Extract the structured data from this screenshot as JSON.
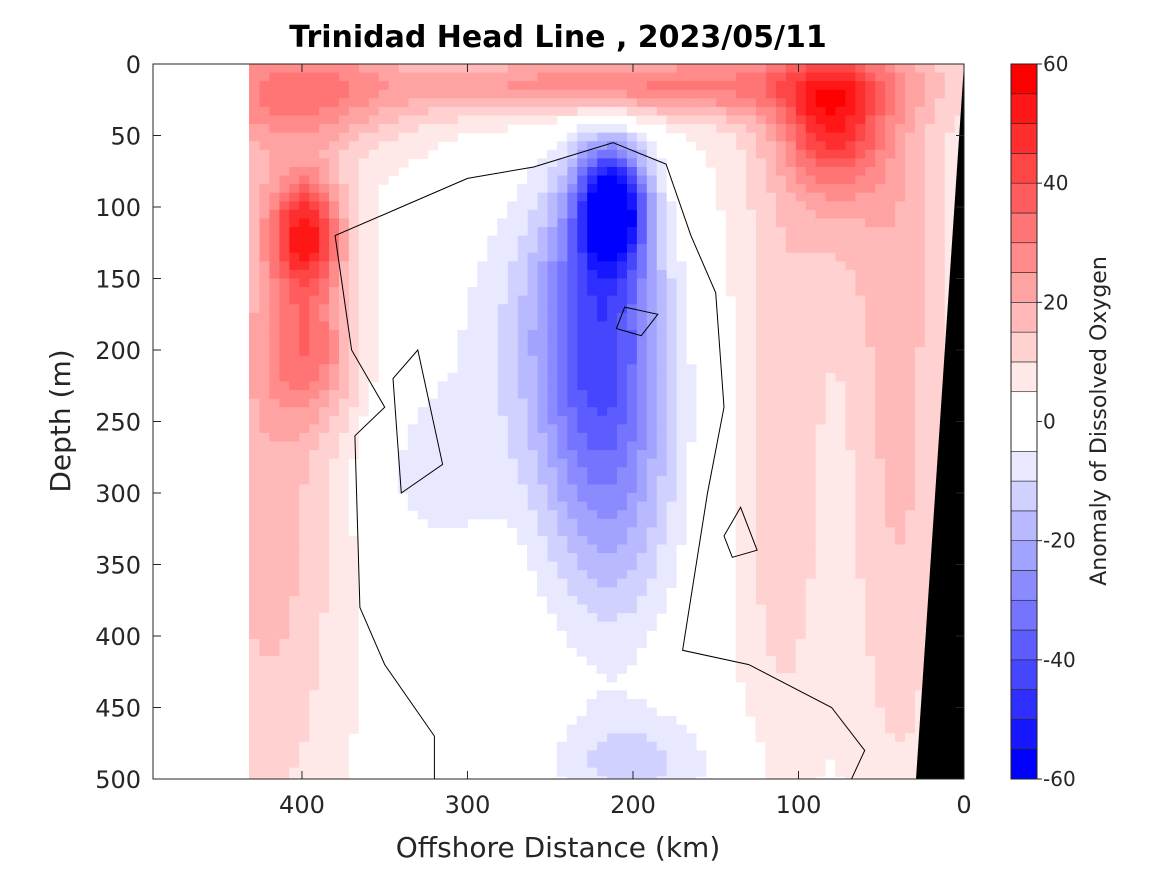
{
  "chart_data": {
    "type": "heatmap",
    "subtype": "filled-contour-section",
    "title": "Trinidad Head Line , 2023/05/11",
    "xlabel": "Offshore Distance (km)",
    "ylabel": "Depth (m)",
    "colorbar_label": "Anomaly of Dissolved Oxygen",
    "xlim": [
      490,
      0
    ],
    "ylim": [
      500,
      0
    ],
    "x_reversed": true,
    "y_reversed": true,
    "xticks": [
      400,
      300,
      200,
      100,
      0
    ],
    "yticks": [
      0,
      50,
      100,
      150,
      200,
      250,
      300,
      350,
      400,
      450,
      500
    ],
    "colorbar_range": [
      -60,
      60
    ],
    "colorbar_ticks": [
      60,
      40,
      20,
      0,
      -20,
      -40,
      -60
    ],
    "colorbar_levels": [
      -60,
      -55,
      -50,
      -45,
      -40,
      -35,
      -30,
      -25,
      -20,
      -15,
      -10,
      -5,
      5,
      10,
      15,
      20,
      25,
      30,
      35,
      40,
      45,
      50,
      55,
      60
    ],
    "colormap": {
      "negative_end": "#0000ff",
      "zero": "#ffffff",
      "positive_end": "#ff0000"
    },
    "data_extent_km": [
      0,
      432
    ],
    "bathymetry": {
      "color": "#000000",
      "surface_km": 0,
      "bottom_km": 29
    },
    "grid": false,
    "features": [
      {
        "name": "subsurface low-oxygen core",
        "x_km": 212,
        "depth_m": 95,
        "value": -45
      },
      {
        "name": "offshore high anomaly",
        "x_km": 398,
        "depth_m": 118,
        "value": 45
      },
      {
        "name": "nearshore high anomaly",
        "x_km": 80,
        "depth_m": 52,
        "value": 42
      },
      {
        "name": "surface high band",
        "x_km": 150,
        "depth_m": 15,
        "value": 30
      }
    ]
  }
}
